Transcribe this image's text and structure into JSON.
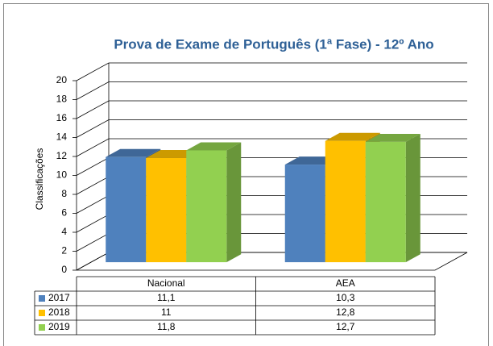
{
  "chart_data": {
    "type": "bar3d",
    "title": "Prova de Exame de Português (1ª Fase) - 12º Ano",
    "ylabel": "Classificações",
    "categories": [
      "Nacional",
      "AEA"
    ],
    "series": [
      {
        "name": "2017",
        "color": "#4f81bd",
        "values": [
          11.1,
          10.3
        ],
        "value_labels": [
          "11,1",
          "10,3"
        ]
      },
      {
        "name": "2018",
        "color": "#ffc000",
        "values": [
          11,
          12.8
        ],
        "value_labels": [
          "11",
          "12,8"
        ]
      },
      {
        "name": "2019",
        "color": "#92d050",
        "values": [
          11.8,
          12.7
        ],
        "value_labels": [
          "11,8",
          "12,7"
        ]
      }
    ],
    "ylim": [
      0,
      20
    ],
    "yticks": [
      0,
      2,
      4,
      6,
      8,
      10,
      12,
      14,
      16,
      18,
      20
    ],
    "grid": true
  }
}
